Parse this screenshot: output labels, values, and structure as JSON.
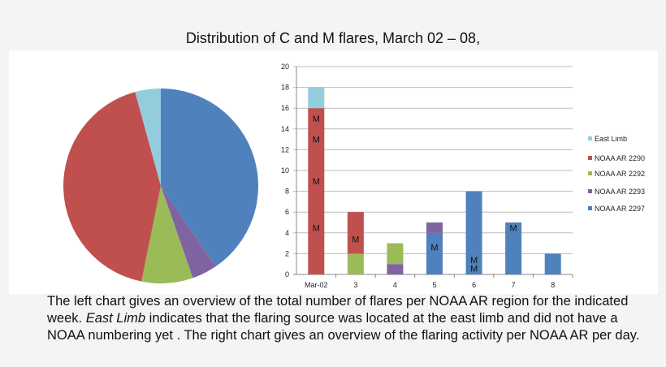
{
  "title": "Distribution of C and M flares, March 02 – 08,",
  "caption": {
    "part1": "The left chart gives an overview of the total number of flares per NOAA AR region for the indicated week. ",
    "italic": "East Limb",
    "part2": " indicates that the flaring source was located at the east limb and did not have a NOAA numbering yet . The right chart gives an overview of the flaring activity per NOAA AR per day."
  },
  "chart_data": [
    {
      "type": "pie",
      "slices": [
        {
          "name": "NOAA AR 2297",
          "value": 19,
          "color": "#4f81bd"
        },
        {
          "name": "NOAA AR 2293",
          "value": 2,
          "color": "#8064a2"
        },
        {
          "name": "NOAA AR 2292",
          "value": 4,
          "color": "#9bbb59"
        },
        {
          "name": "NOAA AR 2290",
          "value": 20,
          "color": "#c0504d"
        },
        {
          "name": "East Limb",
          "value": 2,
          "color": "#93cddd"
        }
      ]
    },
    {
      "type": "bar",
      "stacked": true,
      "categories": [
        "Mar-02",
        "3",
        "4",
        "5",
        "6",
        "7",
        "8"
      ],
      "ylim": [
        0,
        20
      ],
      "yticks": [
        0,
        2,
        4,
        6,
        8,
        10,
        12,
        14,
        16,
        18,
        20
      ],
      "grid": true,
      "legend": "right",
      "series": [
        {
          "name": "NOAA AR 2297",
          "color": "#4f81bd",
          "values": [
            0,
            0,
            0,
            4,
            8,
            5,
            2
          ]
        },
        {
          "name": "NOAA AR 2293",
          "color": "#8064a2",
          "values": [
            0,
            0,
            1,
            1,
            0,
            0,
            0
          ]
        },
        {
          "name": "NOAA AR 2292",
          "color": "#9bbb59",
          "values": [
            0,
            2,
            2,
            0,
            0,
            0,
            0
          ]
        },
        {
          "name": "NOAA AR 2290",
          "color": "#c0504d",
          "values": [
            16,
            4,
            0,
            0,
            0,
            0,
            0
          ]
        },
        {
          "name": "East Limb",
          "color": "#93cddd",
          "values": [
            2,
            0,
            0,
            0,
            0,
            0,
            0
          ]
        }
      ],
      "legend_order": [
        "East Limb",
        "NOAA AR 2290",
        "NOAA AR 2292",
        "NOAA AR 2293",
        "NOAA AR 2297"
      ],
      "annotations": [
        {
          "text": "M",
          "category": "Mar-02",
          "y": 15
        },
        {
          "text": "M",
          "category": "Mar-02",
          "y": 13
        },
        {
          "text": "M",
          "category": "Mar-02",
          "y": 9
        },
        {
          "text": "M",
          "category": "Mar-02",
          "y": 4.5
        },
        {
          "text": "M",
          "category": "3",
          "y": 3.4
        },
        {
          "text": "M",
          "category": "5",
          "y": 2.6
        },
        {
          "text": "M",
          "category": "6",
          "y": 1.4
        },
        {
          "text": "M",
          "category": "6",
          "y": 0.6
        },
        {
          "text": "M",
          "category": "7",
          "y": 4.5
        }
      ]
    }
  ]
}
